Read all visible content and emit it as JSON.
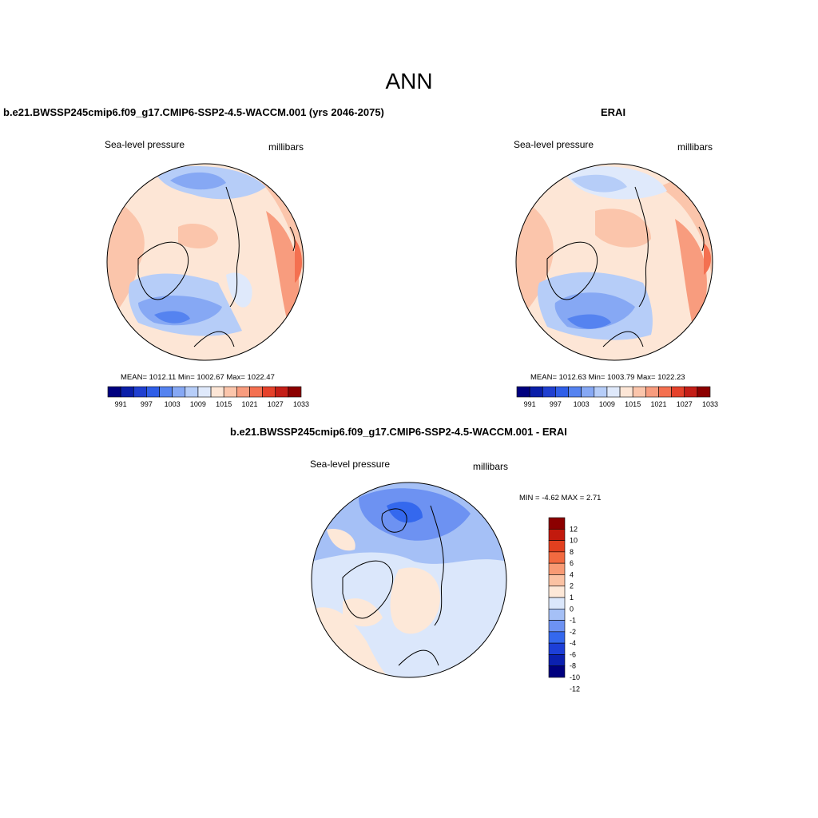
{
  "title": "ANN",
  "colors": {
    "abs": [
      "#00007f",
      "#0a1ea8",
      "#1f3fd0",
      "#2f5ee8",
      "#5583f0",
      "#86a8f4",
      "#b6cdf8",
      "#dfe9fb",
      "#fde6d6",
      "#fbc5ab",
      "#f89c7e",
      "#f47050",
      "#e5412a",
      "#c41e17",
      "#8c0000"
    ],
    "diff": [
      "#00007f",
      "#0b20b0",
      "#1d3fd8",
      "#3468ee",
      "#6d92f2",
      "#a5c0f6",
      "#dbe7fb",
      "#fde8d8",
      "#fbc2a3",
      "#f89a74",
      "#f26a40",
      "#e2401f",
      "#c21a0d",
      "#8c0000"
    ]
  },
  "panels": [
    {
      "id": "model",
      "title": "b.e21.BWSSP245cmip6.f09_g17.CMIP6-SSP2-4.5-WACCM.001 (yrs 2046-2075)",
      "left_label": "Sea-level pressure",
      "right_label": "millibars",
      "stats": "MEAN= 1012.11  Min= 1002.67  Max= 1022.47",
      "colorbar_labels": [
        "991",
        "997",
        "1003",
        "1009",
        "1015",
        "1021",
        "1027",
        "1033"
      ]
    },
    {
      "id": "obs",
      "title": "ERAI",
      "left_label": "Sea-level pressure",
      "right_label": "millibars",
      "stats": "MEAN= 1012.63  Min= 1003.79  Max= 1022.23",
      "colorbar_labels": [
        "991",
        "997",
        "1003",
        "1009",
        "1015",
        "1021",
        "1027",
        "1033"
      ]
    },
    {
      "id": "diff",
      "title": "b.e21.BWSSP245cmip6.f09_g17.CMIP6-SSP2-4.5-WACCM.001 - ERAI",
      "left_label": "Sea-level pressure",
      "right_label": "millibars",
      "stats": "MIN =  -4.62 MAX =   2.71",
      "colorbar_labels": [
        "12",
        "10",
        "8",
        "6",
        "4",
        "2",
        "1",
        "0",
        "-1",
        "-2",
        "-4",
        "-6",
        "-8",
        "-10",
        "-12"
      ]
    }
  ]
}
